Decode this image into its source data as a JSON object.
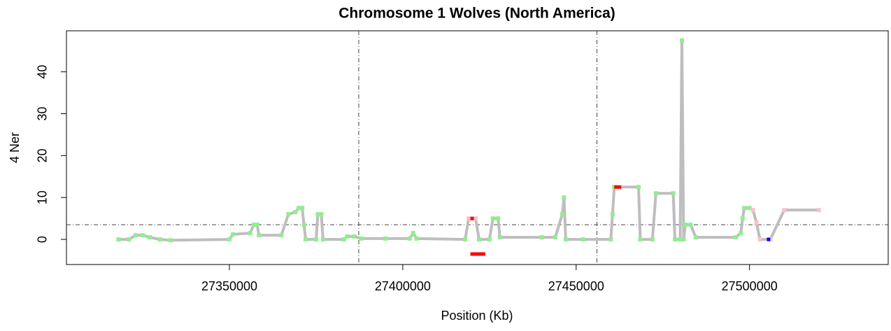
{
  "chart_data": {
    "type": "line",
    "title": "Chromosome 1 Wolves (North America)",
    "x_label": "Position (Kb)",
    "y_label": "4 Ner",
    "xlim": [
      27303000,
      27540000
    ],
    "ylim": [
      -6,
      49.8
    ],
    "xticks": [
      27350000,
      27400000,
      27450000,
      27500000
    ],
    "yticks": [
      0,
      10,
      20,
      30,
      40
    ],
    "vlines": [
      27387300,
      27456000
    ],
    "hlines": [
      3.5
    ],
    "series": [
      {
        "color": "#bebebe",
        "x": [
          27318000,
          27321000,
          27323000,
          27325000,
          27327000,
          27330000,
          27333000,
          27350000,
          27351000,
          27356000,
          27357000,
          27358000,
          27358500,
          27365000,
          27367000,
          27369000,
          27370000,
          27371000,
          27371500,
          27372000,
          27375000,
          27375500,
          27376500,
          27377000,
          27383000,
          27384000,
          27386000,
          27388000,
          27395000,
          27402000,
          27403000,
          27404000,
          27418000,
          27419000,
          27421000,
          27422000,
          27425000,
          27426000,
          27427500,
          27428000,
          27440000,
          27444000,
          27446000,
          27446500,
          27447000,
          27452000,
          27460000,
          27460500,
          27461000,
          27468000,
          27468500,
          27472000,
          27473000,
          27478000,
          27478500,
          27480000,
          27480500,
          27481000,
          27481500,
          27483000,
          27484500,
          27496000,
          27497500,
          27498000,
          27498500,
          27500000,
          27501000,
          27502000,
          27503000,
          27506000,
          27510000,
          27520000
        ],
        "values": [
          0,
          0,
          1,
          1,
          0.5,
          0,
          -0.2,
          0,
          1.2,
          1.5,
          3.5,
          3.5,
          1,
          1,
          6,
          6.5,
          7.5,
          7.5,
          3.5,
          0,
          0,
          6,
          6,
          0,
          0,
          0.7,
          0.7,
          0.2,
          0.2,
          0.2,
          1.5,
          0.2,
          0,
          5,
          5,
          0,
          0,
          5,
          5,
          0.5,
          0.5,
          0.5,
          6,
          10,
          0,
          0,
          0,
          6,
          12.5,
          12.5,
          0,
          0,
          11,
          11,
          0,
          0,
          47.5,
          0,
          3.5,
          3.5,
          0.5,
          0.5,
          1.5,
          5,
          7.5,
          7.5,
          7,
          4,
          0,
          0,
          7,
          7
        ],
        "point_colors": [
          "#90ee90",
          "#90ee90",
          "#90ee90",
          "#90ee90",
          "#90ee90",
          "#90ee90",
          "#90ee90",
          "#90ee90",
          "#90ee90",
          "#90ee90",
          "#90ee90",
          "#90ee90",
          "#90ee90",
          "#90ee90",
          "#90ee90",
          "#90ee90",
          "#90ee90",
          "#90ee90",
          "#90ee90",
          "#90ee90",
          "#90ee90",
          "#90ee90",
          "#90ee90",
          "#90ee90",
          "#90ee90",
          "#90ee90",
          "#90ee90",
          "#90ee90",
          "#90ee90",
          "#90ee90",
          "#90ee90",
          "#90ee90",
          "#90ee90",
          "#ffc0cb",
          "#ffc0cb",
          "#90ee90",
          "#90ee90",
          "#90ee90",
          "#90ee90",
          "#90ee90",
          "#90ee90",
          "#90ee90",
          "#90ee90",
          "#90ee90",
          "#90ee90",
          "#90ee90",
          "#90ee90",
          "#90ee90",
          "#90ee90",
          "#90ee90",
          "#90ee90",
          "#90ee90",
          "#90ee90",
          "#90ee90",
          "#90ee90",
          "#90ee90",
          "#90ee90",
          "#90ee90",
          "#90ee90",
          "#90ee90",
          "#90ee90",
          "#90ee90",
          "#90ee90",
          "#90ee90",
          "#90ee90",
          "#90ee90",
          "#ffc0cb",
          "#ffc0cb",
          "#ffc0cb",
          "#ffc0cb",
          "#ffc0cb",
          "#ffc0cb"
        ]
      },
      {
        "color": "#ff0000",
        "x": [
          27419500,
          27423800
        ],
        "values": [
          -3.5,
          -3.5
        ]
      },
      {
        "color": "#ff0000",
        "x": [
          27461000,
          27463000
        ],
        "values": [
          12.5,
          12.5
        ]
      },
      {
        "color": "#ff0000",
        "x": [
          27419500,
          27420500
        ],
        "values": [
          5,
          5
        ]
      },
      {
        "color": "#0000ff",
        "x": [
          27505000,
          27506000
        ],
        "values": [
          0,
          0
        ]
      }
    ]
  }
}
